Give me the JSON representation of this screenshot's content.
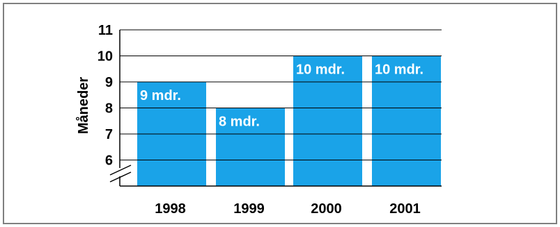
{
  "chart_data": {
    "type": "bar",
    "categories": [
      "1998",
      "1999",
      "2000",
      "2001"
    ],
    "values": [
      9,
      8,
      10,
      10
    ],
    "data_labels": [
      "9 mdr.",
      "8 mdr.",
      "10 mdr.",
      "10 mdr."
    ],
    "title": "",
    "xlabel": "",
    "ylabel": "Måneder",
    "y_ticks": [
      6,
      7,
      8,
      9,
      10,
      11
    ],
    "y_tick_labels": [
      "6",
      "7",
      "8",
      "9",
      "10",
      "11"
    ],
    "ylim": [
      5,
      11
    ],
    "axis_break": true,
    "grid": true,
    "colors": {
      "bar": "#1aa3e8",
      "grid": "#000000",
      "frame": "#7f7f7f",
      "label_text": "#ffffff",
      "axis_text": "#000000"
    }
  }
}
